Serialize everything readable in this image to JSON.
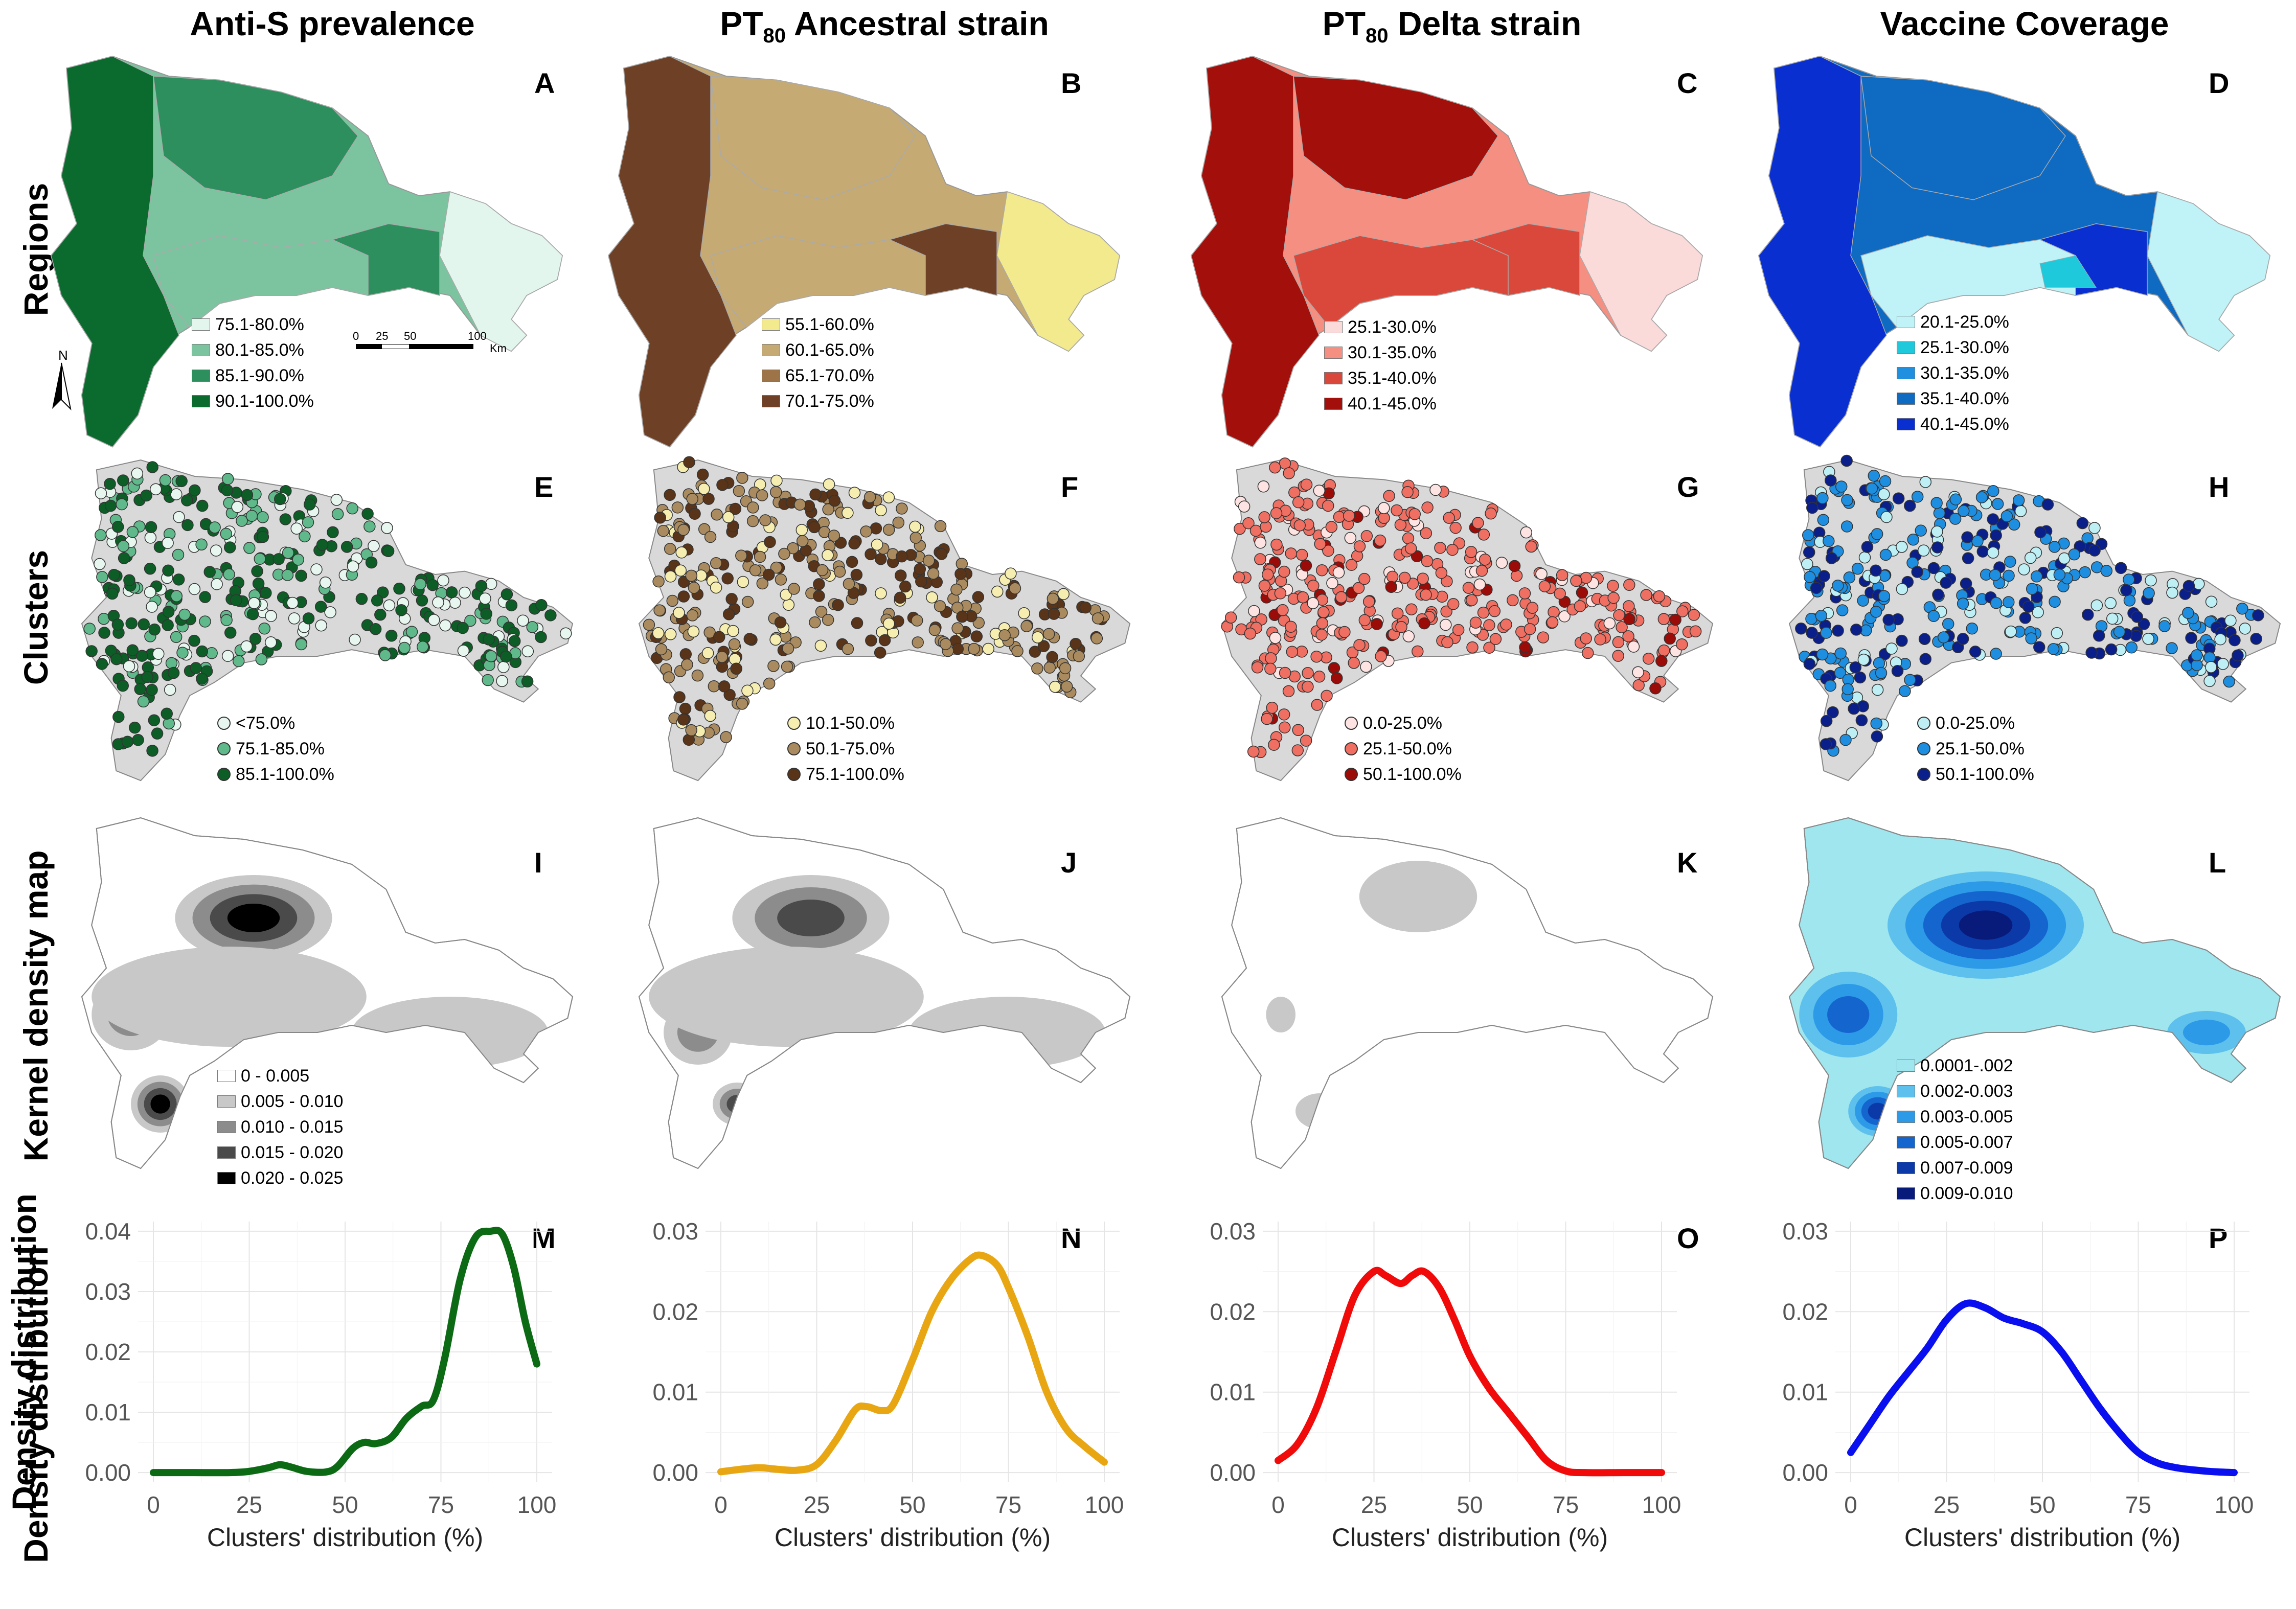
{
  "columns": [
    {
      "title": "Anti-S prevalence",
      "title_pre": "",
      "title_sub": "",
      "title_post": ""
    },
    {
      "title": "",
      "title_pre": "PT",
      "title_sub": "80",
      "title_post": " Ancestral strain"
    },
    {
      "title": "",
      "title_pre": "PT",
      "title_sub": "80",
      "title_post": " Delta strain"
    },
    {
      "title": "Vaccine Coverage",
      "title_pre": "",
      "title_sub": "",
      "title_post": ""
    }
  ],
  "rows": [
    "Regions",
    "Clusters",
    "Kernel density map",
    "Density distribution"
  ],
  "panel_letters": [
    "A",
    "B",
    "C",
    "D",
    "E",
    "F",
    "G",
    "H",
    "I",
    "J",
    "K",
    "L",
    "M",
    "N",
    "O",
    "P"
  ],
  "scalebar": {
    "ticks": [
      "0",
      "25",
      "50",
      "100"
    ],
    "unit": "Km",
    "north": "N"
  },
  "regions_legends": [
    {
      "items": [
        {
          "label": "75.1-80.0%",
          "color": "#e3f6ee"
        },
        {
          "label": "80.1-85.0%",
          "color": "#7cc4a0"
        },
        {
          "label": "85.1-90.0%",
          "color": "#2e8f5e"
        },
        {
          "label": "90.1-100.0%",
          "color": "#0b6b2e"
        }
      ]
    },
    {
      "items": [
        {
          "label": "55.1-60.0%",
          "color": "#f3e98d"
        },
        {
          "label": "60.1-65.0%",
          "color": "#c5aa74"
        },
        {
          "label": "65.1-70.0%",
          "color": "#9c7448"
        },
        {
          "label": "70.1-75.0%",
          "color": "#6e4127"
        }
      ]
    },
    {
      "items": [
        {
          "label": "25.1-30.0%",
          "color": "#fbdada"
        },
        {
          "label": "30.1-35.0%",
          "color": "#f58f82"
        },
        {
          "label": "35.1-40.0%",
          "color": "#d9483b"
        },
        {
          "label": "40.1-45.0%",
          "color": "#a30f0a"
        }
      ]
    },
    {
      "items": [
        {
          "label": "20.1-25.0%",
          "color": "#bff3f8"
        },
        {
          "label": "25.1-30.0%",
          "color": "#1ec9dc"
        },
        {
          "label": "30.1-35.0%",
          "color": "#1f8fe0"
        },
        {
          "label": "35.1-40.0%",
          "color": "#0f6ac2"
        },
        {
          "label": "40.1-45.0%",
          "color": "#0a2fd0"
        }
      ]
    }
  ],
  "clusters_legends": [
    {
      "items": [
        {
          "label": "<75.0%",
          "color": "#e7f7ef"
        },
        {
          "label": "75.1-85.0%",
          "color": "#5fb98a"
        },
        {
          "label": "85.1-100.0%",
          "color": "#0c5e26"
        }
      ]
    },
    {
      "items": [
        {
          "label": "10.1-50.0%",
          "color": "#f6eeb0"
        },
        {
          "label": "50.1-75.0%",
          "color": "#a98b5f"
        },
        {
          "label": "75.1-100.0%",
          "color": "#5a3418"
        }
      ]
    },
    {
      "items": [
        {
          "label": "0.0-25.0%",
          "color": "#fde3e1"
        },
        {
          "label": "25.1-50.0%",
          "color": "#ef6f62"
        },
        {
          "label": "50.1-100.0%",
          "color": "#9b0b07"
        }
      ]
    },
    {
      "items": [
        {
          "label": "0.0-25.0%",
          "color": "#bdeff5"
        },
        {
          "label": "25.1-50.0%",
          "color": "#1e8fe0"
        },
        {
          "label": "50.1-100.0%",
          "color": "#0a1f8a"
        }
      ]
    }
  ],
  "kernel_legends": [
    {
      "items": [
        {
          "label": "0 - 0.005",
          "color": "#ffffff"
        },
        {
          "label": "0.005 - 0.010",
          "color": "#c8c8c8"
        },
        {
          "label": "0.010 - 0.015",
          "color": "#8c8c8c"
        },
        {
          "label": "0.015 - 0.020",
          "color": "#4a4a4a"
        },
        {
          "label": "0.020 - 0.025",
          "color": "#000000"
        }
      ]
    },
    {
      "items": []
    },
    {
      "items": []
    },
    {
      "items": [
        {
          "label": "0.0001-.002",
          "color": "#9fe6ef"
        },
        {
          "label": "0.002-0.003",
          "color": "#5ec0ec"
        },
        {
          "label": "0.003-0.005",
          "color": "#2c9ae6"
        },
        {
          "label": "0.005-0.007",
          "color": "#1565cf"
        },
        {
          "label": "0.007-0.009",
          "color": "#0b3aa8"
        },
        {
          "label": "0.009-0.010",
          "color": "#081a7a"
        }
      ]
    }
  ],
  "chart_data": [
    {
      "type": "line",
      "panel": "M",
      "color": "#0c6a14",
      "xlabel": "Clusters' distribution (%)",
      "ylabel": "Density distribution",
      "xlim": [
        0,
        100
      ],
      "ylim": [
        0,
        0.04
      ],
      "xticks": [
        0,
        25,
        50,
        75,
        100
      ],
      "yticks": [
        0,
        0.01,
        0.02,
        0.03,
        0.04
      ],
      "ytick_labels": [
        "0.00",
        "0.01",
        "0.02",
        "0.03",
        "0.04"
      ],
      "xtick_labels": [
        "0",
        "25",
        "50",
        "75",
        "100"
      ],
      "x": [
        0,
        10,
        20,
        25,
        30,
        33,
        36,
        40,
        45,
        48,
        52,
        55,
        58,
        62,
        66,
        70,
        73,
        76,
        80,
        84,
        88,
        91,
        94,
        97,
        100
      ],
      "y": [
        0,
        0,
        0,
        0.0002,
        0.0008,
        0.0013,
        0.0009,
        0.0002,
        0.0001,
        0.001,
        0.004,
        0.005,
        0.0048,
        0.0058,
        0.009,
        0.011,
        0.012,
        0.019,
        0.032,
        0.039,
        0.04,
        0.0395,
        0.034,
        0.025,
        0.018
      ]
    },
    {
      "type": "line",
      "panel": "N",
      "color": "#e8a612",
      "xlabel": "Clusters' distribution (%)",
      "ylabel": "",
      "xlim": [
        0,
        100
      ],
      "ylim": [
        0,
        0.03
      ],
      "xticks": [
        0,
        25,
        50,
        75,
        100
      ],
      "yticks": [
        0,
        0.01,
        0.02,
        0.03
      ],
      "ytick_labels": [
        "0.00",
        "0.01",
        "0.02",
        "0.03"
      ],
      "xtick_labels": [
        "0",
        "25",
        "50",
        "75",
        "100"
      ],
      "x": [
        0,
        5,
        10,
        15,
        20,
        25,
        30,
        35,
        38,
        42,
        45,
        50,
        55,
        60,
        65,
        68,
        72,
        75,
        80,
        85,
        90,
        95,
        100
      ],
      "y": [
        0.0001,
        0.0004,
        0.0006,
        0.0004,
        0.0003,
        0.001,
        0.004,
        0.0078,
        0.0082,
        0.0077,
        0.0085,
        0.014,
        0.02,
        0.024,
        0.0265,
        0.027,
        0.0258,
        0.023,
        0.017,
        0.01,
        0.0055,
        0.0032,
        0.0013
      ]
    },
    {
      "type": "line",
      "panel": "O",
      "color": "#f00a0a",
      "xlabel": "Clusters' distribution (%)",
      "ylabel": "",
      "xlim": [
        0,
        100
      ],
      "ylim": [
        0,
        0.03
      ],
      "xticks": [
        0,
        25,
        50,
        75,
        100
      ],
      "yticks": [
        0,
        0.01,
        0.02,
        0.03
      ],
      "ytick_labels": [
        "0.00",
        "0.01",
        "0.02",
        "0.03"
      ],
      "xtick_labels": [
        "0",
        "25",
        "50",
        "75",
        "100"
      ],
      "x": [
        0,
        5,
        10,
        15,
        20,
        25,
        28,
        32,
        35,
        38,
        42,
        46,
        50,
        55,
        60,
        65,
        70,
        75,
        80,
        90,
        100
      ],
      "y": [
        0.0015,
        0.0035,
        0.008,
        0.015,
        0.022,
        0.025,
        0.0245,
        0.0235,
        0.0245,
        0.025,
        0.023,
        0.019,
        0.0145,
        0.0105,
        0.0075,
        0.0045,
        0.0015,
        0.0002,
        0,
        0,
        0
      ]
    },
    {
      "type": "line",
      "panel": "P",
      "color": "#0a0ff0",
      "xlabel": "Clusters' distribution (%)",
      "ylabel": "",
      "xlim": [
        0,
        100
      ],
      "ylim": [
        0,
        0.03
      ],
      "xticks": [
        0,
        25,
        50,
        75,
        100
      ],
      "yticks": [
        0,
        0.01,
        0.02,
        0.03
      ],
      "ytick_labels": [
        "0.00",
        "0.01",
        "0.02",
        "0.03"
      ],
      "xtick_labels": [
        "0",
        "25",
        "50",
        "75",
        "100"
      ],
      "x": [
        0,
        5,
        10,
        15,
        20,
        25,
        30,
        35,
        40,
        45,
        50,
        55,
        60,
        65,
        70,
        75,
        80,
        85,
        90,
        95,
        100
      ],
      "y": [
        0.0025,
        0.006,
        0.0095,
        0.0125,
        0.0155,
        0.019,
        0.021,
        0.0205,
        0.0192,
        0.0185,
        0.0175,
        0.015,
        0.0115,
        0.008,
        0.005,
        0.0025,
        0.0012,
        0.0006,
        0.0003,
        0.0001,
        0
      ]
    }
  ]
}
